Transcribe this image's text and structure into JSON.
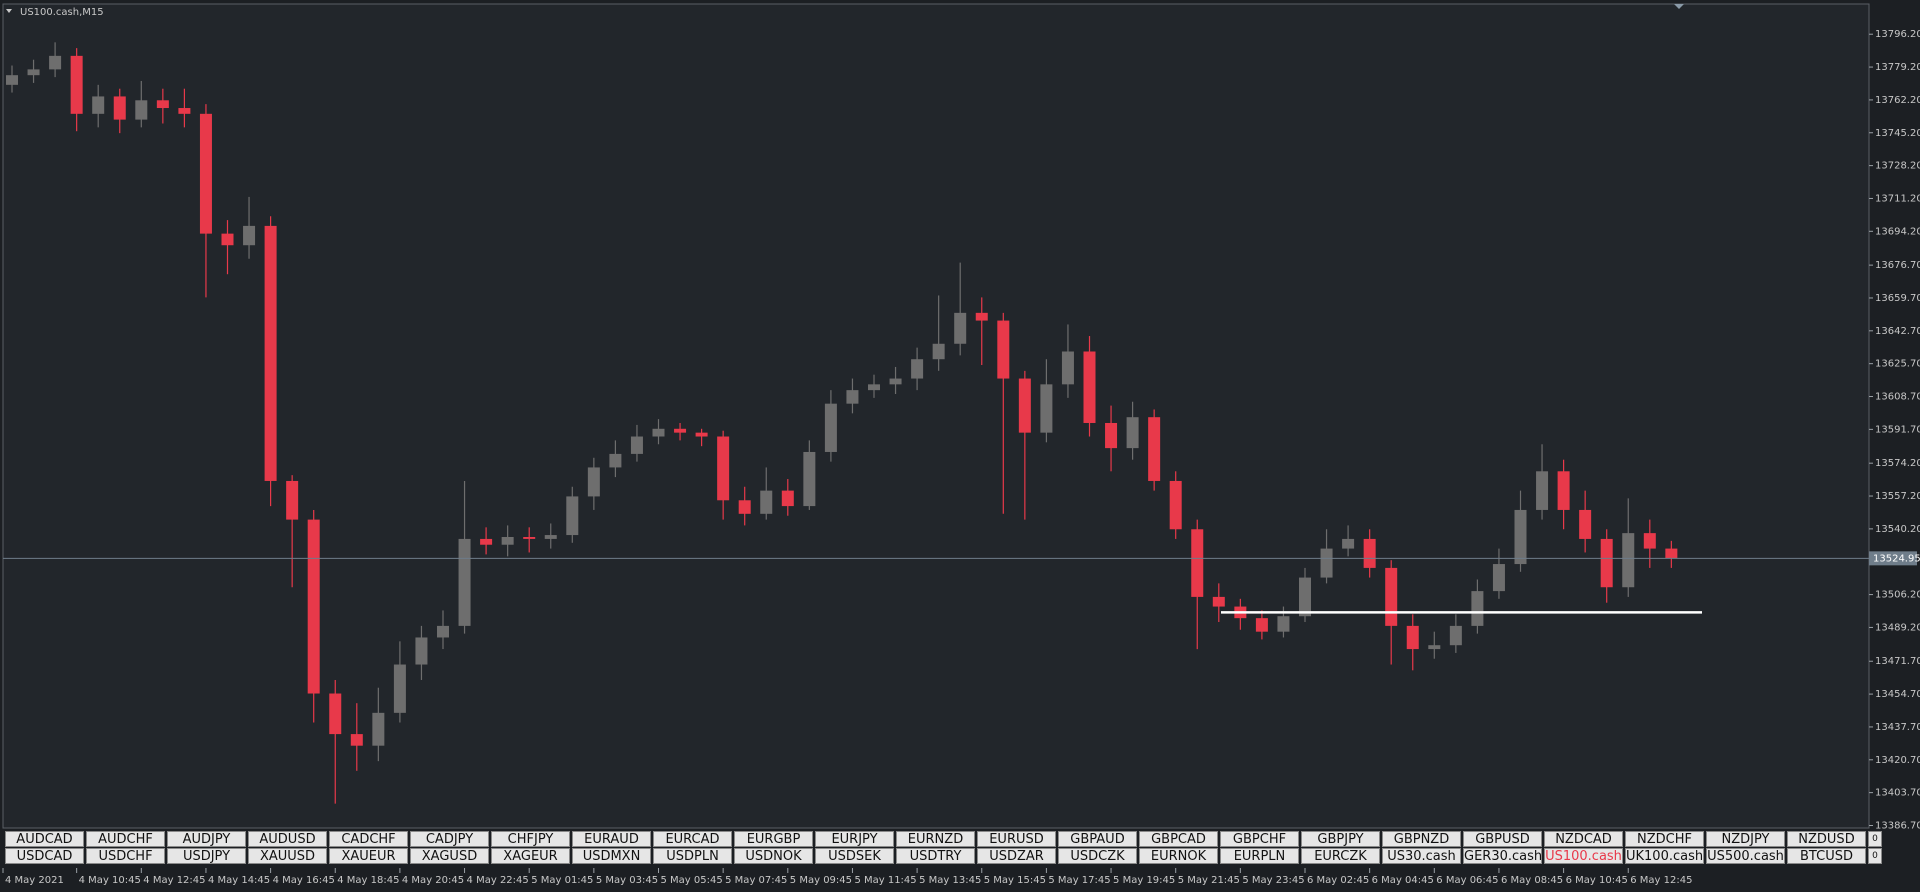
{
  "chart_data": {
    "type": "candlestick",
    "title": "US100.cash,M15",
    "categories": [
      "4 May 2021",
      null,
      null,
      "4 May 10:45",
      null,
      null,
      "4 May 12:45",
      null,
      null,
      "4 May 14:45",
      null,
      null,
      "4 May 16:45",
      null,
      null,
      "4 May 18:45",
      null,
      null,
      "4 May 20:45",
      null,
      null,
      "4 May 22:45",
      null,
      null,
      "5 May 01:45",
      null,
      null,
      "5 May 03:45",
      null,
      null,
      "5 May 05:45",
      null,
      null,
      "5 May 07:45",
      null,
      null,
      "5 May 09:45",
      null,
      null,
      "5 May 11:45",
      null,
      null,
      "5 May 13:45",
      null,
      null,
      "5 May 15:45",
      null,
      null,
      "5 May 17:45",
      null,
      null,
      "5 May 19:45",
      null,
      null,
      "5 May 21:45",
      null,
      null,
      "5 May 23:45",
      null,
      null,
      "6 May 02:45",
      null,
      null,
      "6 May 04:45",
      null,
      null,
      "6 May 06:45",
      null,
      null,
      "6 May 08:45",
      null,
      null,
      "6 May 10:45",
      null,
      null,
      "6 May 12:45",
      null,
      null
    ],
    "open": [
      13770,
      13775,
      13778,
      13785,
      13755,
      13764,
      13752,
      13762,
      13758,
      13755,
      13693,
      13687,
      13697,
      13565,
      13545,
      13455,
      13434,
      13428,
      13445,
      13470,
      13484,
      13490,
      13535,
      13532,
      13536,
      13535,
      13537,
      13557,
      13572,
      13579,
      13588,
      13592,
      13590,
      13588,
      13555,
      13548,
      13560,
      13552,
      13580,
      13605,
      13612,
      13615,
      13618,
      13628,
      13636,
      13652,
      13648,
      13618,
      13590,
      13615,
      13632,
      13595,
      13582,
      13598,
      13565,
      13540,
      13505,
      13500,
      13494,
      13487,
      13495,
      13515,
      13530,
      13535,
      13520,
      13490,
      13478,
      13480,
      13490,
      13508,
      13522,
      13550,
      13570,
      13550,
      13535,
      13510,
      13538,
      13530
    ],
    "high": [
      13780,
      13783,
      13792,
      13789,
      13770,
      13768,
      13772,
      13768,
      13768,
      13760,
      13700,
      13712,
      13702,
      13568,
      13550,
      13462,
      13450,
      13458,
      13482,
      13490,
      13498,
      13565,
      13541,
      13542,
      13541,
      13543,
      13562,
      13577,
      13586,
      13594,
      13597,
      13595,
      13592,
      13591,
      13562,
      13572,
      13566,
      13586,
      13612,
      13618,
      13620,
      13624,
      13634,
      13661,
      13678,
      13660,
      13652,
      13622,
      13628,
      13646,
      13640,
      13604,
      13606,
      13602,
      13570,
      13545,
      13512,
      13504,
      13498,
      13500,
      13520,
      13540,
      13542,
      13540,
      13524,
      13496,
      13487,
      13496,
      13514,
      13530,
      13560,
      13584,
      13576,
      13560,
      13540,
      13556,
      13545,
      13534
    ],
    "low": [
      13766,
      13771,
      13774,
      13746,
      13748,
      13745,
      13748,
      13750,
      13748,
      13660,
      13672,
      13680,
      13552,
      13510,
      13440,
      13398,
      13415,
      13420,
      13440,
      13462,
      13478,
      13486,
      13527,
      13526,
      13528,
      13530,
      13533,
      13550,
      13567,
      13575,
      13584,
      13586,
      13583,
      13545,
      13542,
      13545,
      13547,
      13550,
      13575,
      13600,
      13608,
      13610,
      13612,
      13622,
      13630,
      13625,
      13548,
      13545,
      13585,
      13608,
      13588,
      13570,
      13576,
      13560,
      13535,
      13478,
      13492,
      13488,
      13483,
      13484,
      13492,
      13512,
      13526,
      13515,
      13470,
      13467,
      13473,
      13476,
      13486,
      13504,
      13518,
      13545,
      13540,
      13528,
      13502,
      13505,
      13520,
      13520
    ],
    "close": [
      13775,
      13778,
      13785,
      13755,
      13764,
      13752,
      13762,
      13758,
      13755,
      13693,
      13687,
      13697,
      13565,
      13545,
      13455,
      13434,
      13428,
      13445,
      13470,
      13484,
      13490,
      13535,
      13532,
      13536,
      13535,
      13537,
      13557,
      13572,
      13579,
      13588,
      13592,
      13590,
      13588,
      13555,
      13548,
      13560,
      13552,
      13580,
      13605,
      13612,
      13615,
      13618,
      13628,
      13636,
      13652,
      13648,
      13618,
      13590,
      13615,
      13632,
      13595,
      13582,
      13598,
      13565,
      13540,
      13505,
      13500,
      13494,
      13487,
      13495,
      13515,
      13530,
      13535,
      13520,
      13490,
      13478,
      13480,
      13490,
      13508,
      13522,
      13550,
      13570,
      13550,
      13535,
      13510,
      13538,
      13530,
      13525
    ],
    "colors": {
      "up": "#6e6e6e",
      "down": "#e8394a",
      "support": "#ffffff",
      "price_line": "#6f7d8a"
    },
    "ylim": [
      13385.4,
      13810.8
    ],
    "yticks": [
      {
        "value": 13796.2,
        "label": "13796.20"
      },
      {
        "value": 13779.2,
        "label": "13779.20"
      },
      {
        "value": 13762.2,
        "label": "13762.20"
      },
      {
        "value": 13745.2,
        "label": "13745.20"
      },
      {
        "value": 13728.2,
        "label": "13728.20"
      },
      {
        "value": 13711.2,
        "label": "13711.20"
      },
      {
        "value": 13694.2,
        "label": "13694.20"
      },
      {
        "value": 13676.7,
        "label": "13676.70"
      },
      {
        "value": 13659.7,
        "label": "13659.70"
      },
      {
        "value": 13642.7,
        "label": "13642.70"
      },
      {
        "value": 13625.7,
        "label": "13625.70"
      },
      {
        "value": 13608.7,
        "label": "13608.70"
      },
      {
        "value": 13591.7,
        "label": "13591.70"
      },
      {
        "value": 13574.2,
        "label": "13574.20"
      },
      {
        "value": 13557.2,
        "label": "13557.20"
      },
      {
        "value": 13540.2,
        "label": "13540.20"
      },
      {
        "value": 13506.2,
        "label": "13506.20"
      },
      {
        "value": 13489.2,
        "label": "13489.20"
      },
      {
        "value": 13471.7,
        "label": "13471.70"
      },
      {
        "value": 13454.7,
        "label": "13454.70"
      },
      {
        "value": 13437.7,
        "label": "13437.70"
      },
      {
        "value": 13420.7,
        "label": "13420.70"
      },
      {
        "value": 13403.7,
        "label": "13403.70"
      },
      {
        "value": 13386.7,
        "label": "13386.70"
      }
    ],
    "current_price": 13524.95,
    "support_line": 13497,
    "grid": false
  },
  "buttons": {
    "rows": [
      [
        "AUDCAD",
        "AUDCHF",
        "AUDJPY",
        "AUDUSD",
        "CADCHF",
        "CADJPY",
        "CHFJPY",
        "EURAUD",
        "EURCAD",
        "EURGBP",
        "EURJPY",
        "EURNZD",
        "EURUSD",
        "GBPAUD",
        "GBPCAD",
        "GBPCHF",
        "GBPJPY",
        "GBPNZD",
        "GBPUSD",
        "NZDCAD",
        "NZDCHF",
        "NZDJPY",
        "NZDUSD"
      ],
      [
        "USDCAD",
        "USDCHF",
        "USDJPY",
        "XAUUSD",
        "XAUEUR",
        "XAGUSD",
        "XAGEUR",
        "USDMXN",
        "USDPLN",
        "USDNOK",
        "USDSEK",
        "USDTRY",
        "USDZAR",
        "USDCZK",
        "EURNOK",
        "EURPLN",
        "EURCZK",
        "US30.cash",
        "GER30.cash",
        "US100.cash",
        "UK100.cash",
        "US500.cash",
        "BTCUSD"
      ]
    ],
    "counters": [
      "0",
      "0"
    ]
  }
}
